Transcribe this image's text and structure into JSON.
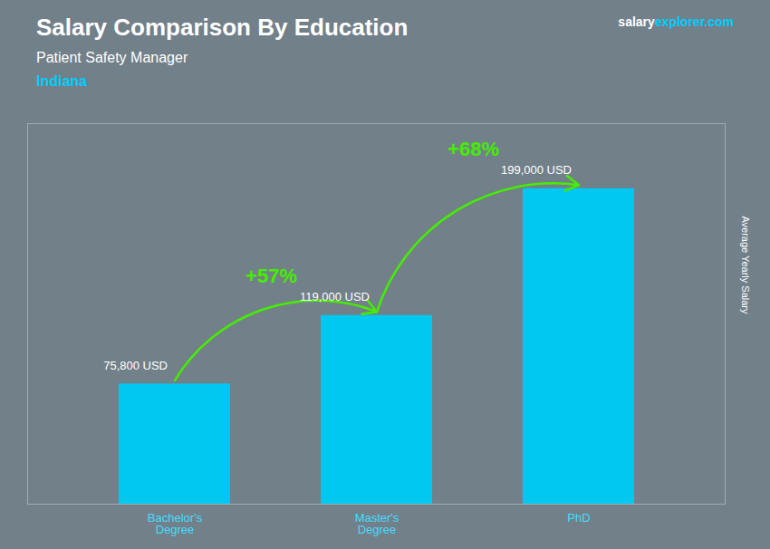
{
  "chart_data": {
    "type": "bar",
    "title": "Salary Comparison By Education",
    "subtitle": "Patient Safety Manager",
    "location": "Indiana",
    "watermark": [
      "salary",
      "explorer",
      ".com"
    ],
    "ylabel": "Average Yearly Salary",
    "categories": [
      "Bachelor's\nDegree",
      "Master's\nDegree",
      "PhD"
    ],
    "values": [
      75800,
      119000,
      199000
    ],
    "value_labels": [
      "75,800 USD",
      "119,000 USD",
      "199,000 USD"
    ],
    "data_labels": true,
    "annotations": [
      "+57%",
      "+68%"
    ],
    "color": "#00C8F0",
    "ylim": [
      0,
      240000
    ],
    "tick_labels": "x",
    "grid": false
  }
}
